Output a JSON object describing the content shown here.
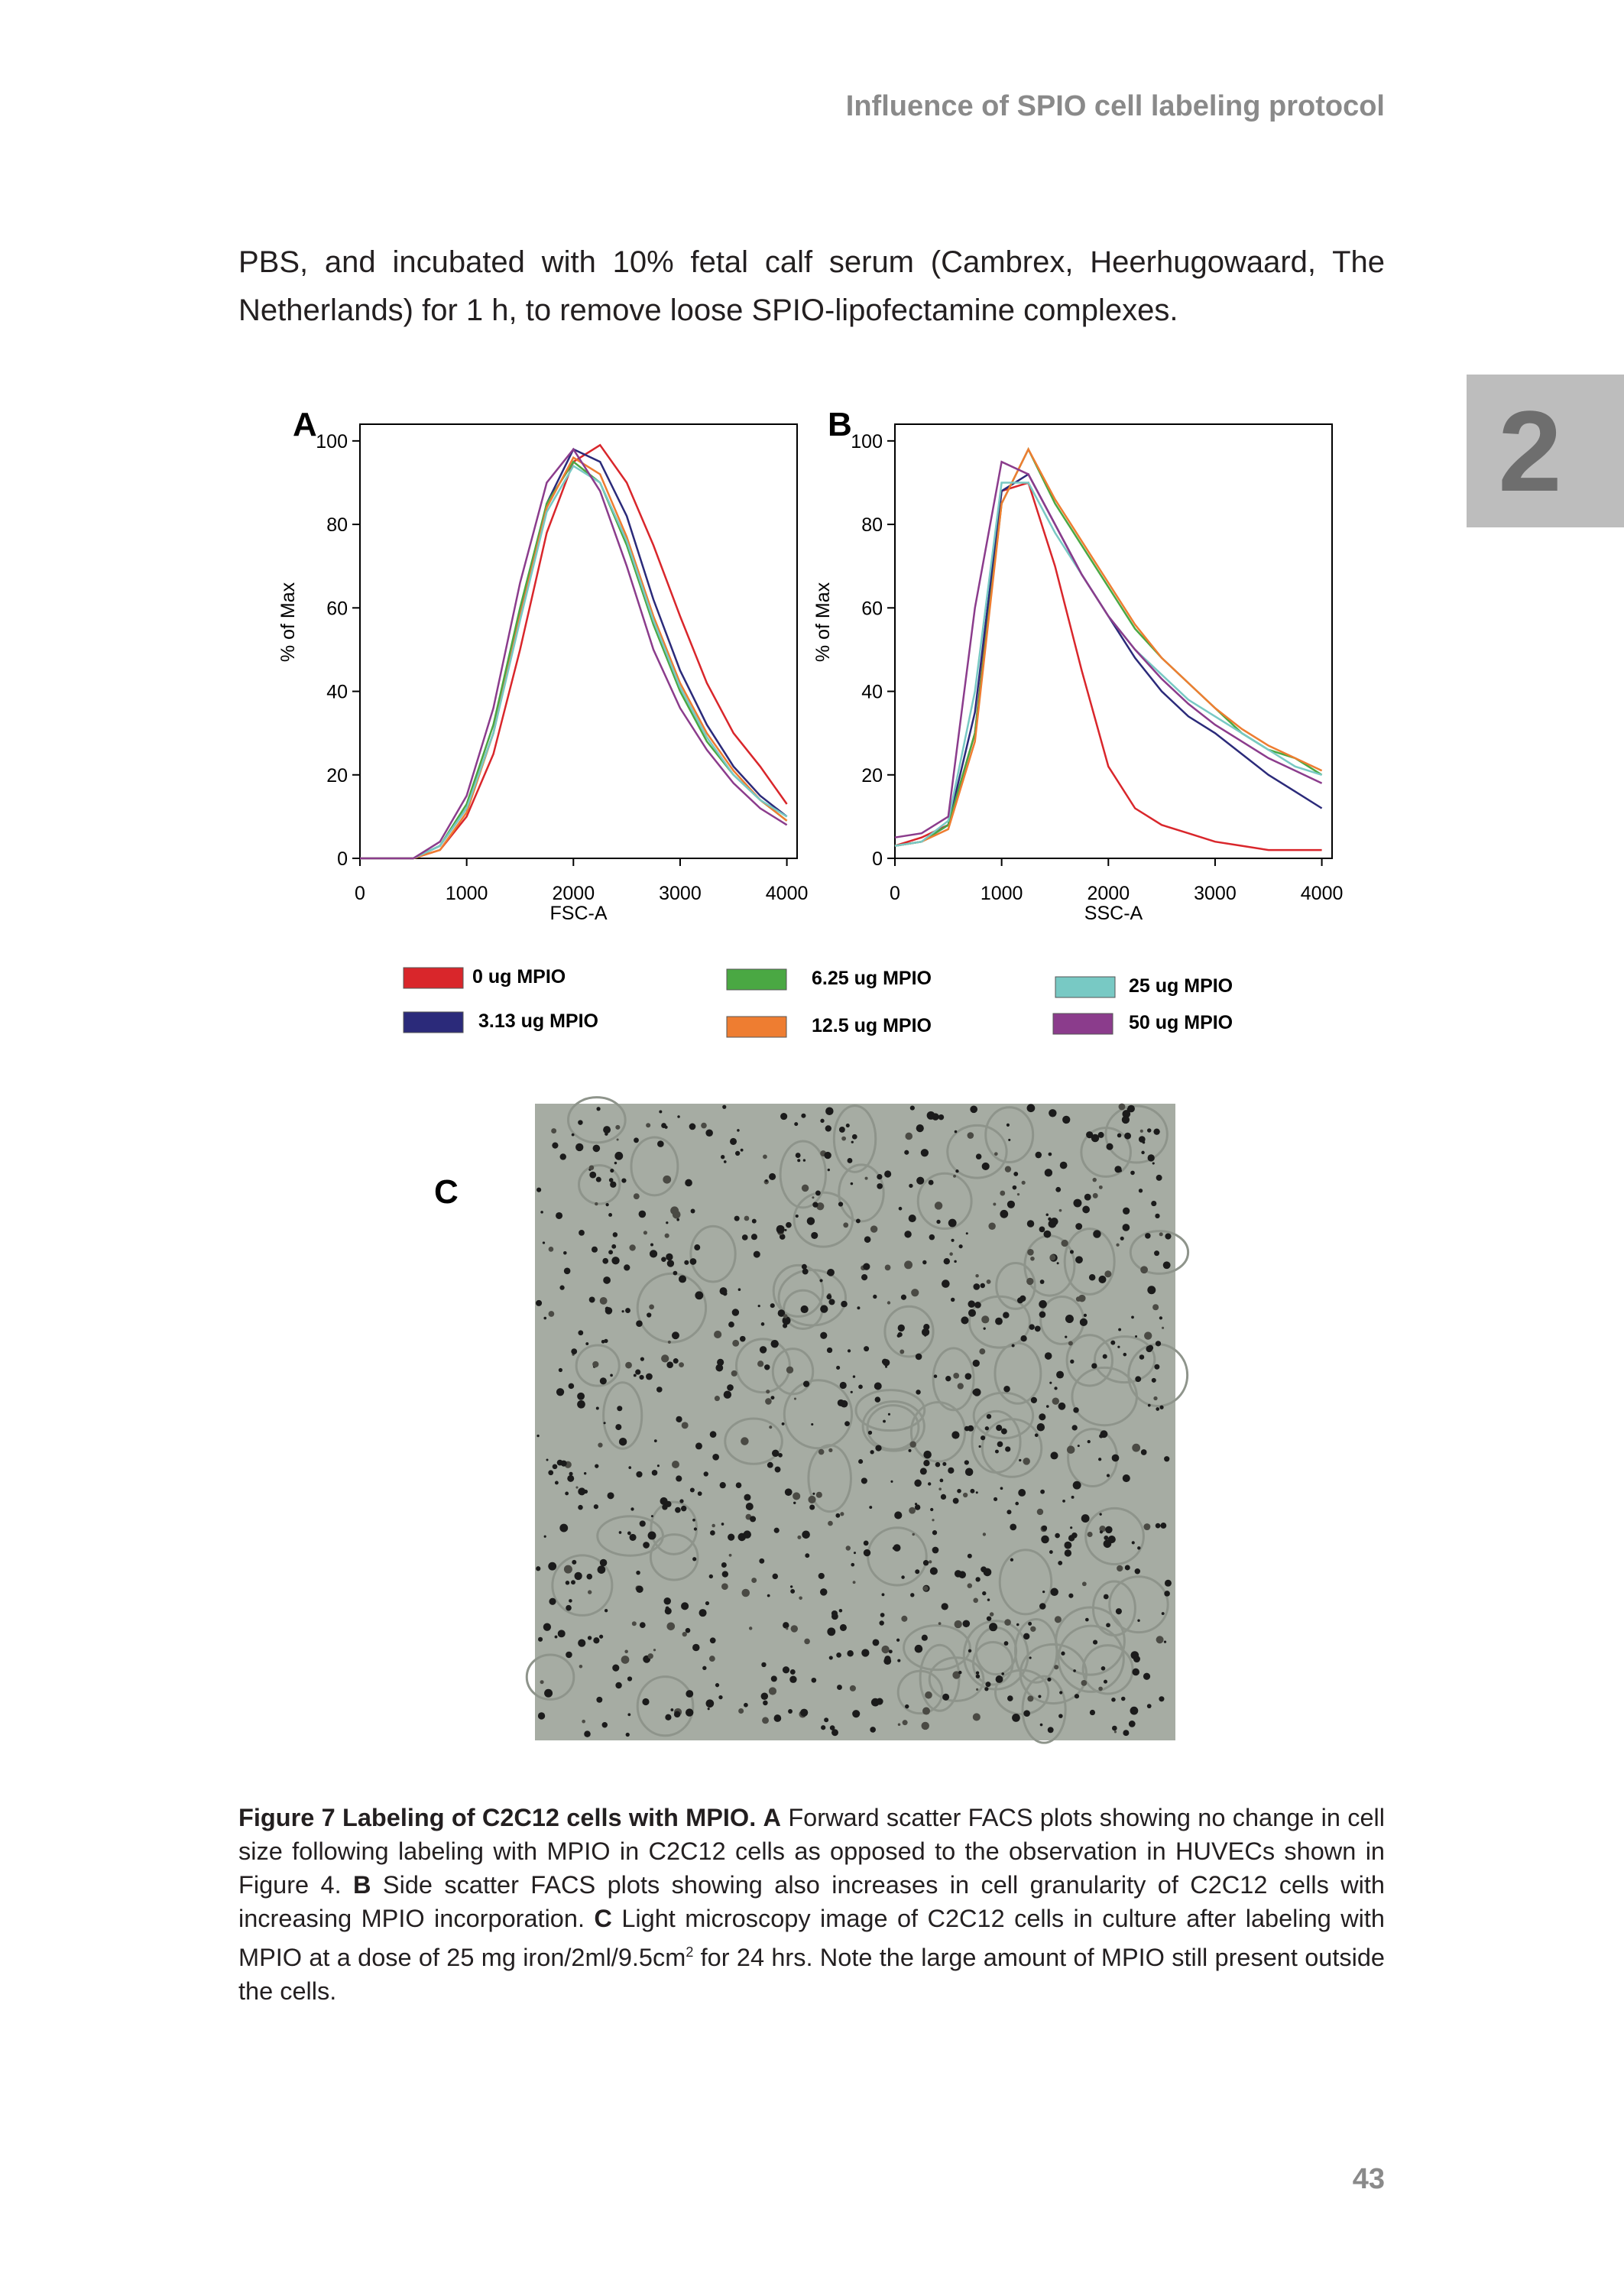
{
  "header": {
    "running_title": "Influence of SPIO cell labeling protocol",
    "chapter": "2",
    "page_number": "43"
  },
  "body": {
    "paragraph": "PBS, and incubated with 10% fetal calf serum (Cambrex, Heerhugowaard, The Netherlands) for 1 h, to remove loose SPIO-lipofectamine complexes."
  },
  "chart_data": [
    {
      "type": "line",
      "label": "A",
      "ylabel": "% of Max",
      "xlabel": "FSC-A",
      "x": [
        0,
        250,
        500,
        750,
        1000,
        1250,
        1500,
        1750,
        2000,
        2250,
        2500,
        2750,
        3000,
        3250,
        3500,
        3750,
        4000
      ],
      "xlim": [
        0,
        4096
      ],
      "ylim": [
        0,
        104
      ],
      "xticks": [
        0,
        1000,
        2000,
        3000,
        4000
      ],
      "yticks": [
        0,
        20,
        40,
        60,
        80,
        100
      ],
      "series": [
        {
          "name": "0 ug MPIO",
          "color": "#d9262b",
          "values": [
            0,
            0,
            0,
            2,
            10,
            25,
            50,
            78,
            95,
            99,
            90,
            75,
            58,
            42,
            30,
            22,
            13
          ]
        },
        {
          "name": "3.13 ug MPIO",
          "color": "#2b2a7a",
          "values": [
            0,
            0,
            0,
            3,
            12,
            30,
            58,
            85,
            98,
            95,
            82,
            62,
            45,
            32,
            22,
            15,
            10
          ]
        },
        {
          "name": "6.25 ug MPIO",
          "color": "#4aa843",
          "values": [
            0,
            0,
            0,
            3,
            13,
            32,
            60,
            85,
            95,
            90,
            75,
            56,
            40,
            28,
            20,
            14,
            9
          ]
        },
        {
          "name": "12.5 ug MPIO",
          "color": "#ee7d31",
          "values": [
            0,
            0,
            0,
            2,
            11,
            30,
            58,
            84,
            96,
            92,
            77,
            58,
            42,
            30,
            21,
            14,
            9
          ]
        },
        {
          "name": "25 ug MPIO",
          "color": "#78c9c4",
          "values": [
            0,
            0,
            0,
            3,
            12,
            30,
            57,
            83,
            94,
            90,
            76,
            57,
            41,
            29,
            20,
            14,
            10
          ]
        },
        {
          "name": "50 ug MPIO",
          "color": "#8b3c8c",
          "values": [
            0,
            0,
            0,
            4,
            15,
            36,
            66,
            90,
            98,
            88,
            70,
            50,
            36,
            26,
            18,
            12,
            8
          ]
        }
      ]
    },
    {
      "type": "line",
      "label": "B",
      "ylabel": "% of Max",
      "xlabel": "SSC-A",
      "x": [
        0,
        250,
        500,
        750,
        1000,
        1250,
        1500,
        1750,
        2000,
        2250,
        2500,
        2750,
        3000,
        3250,
        3500,
        3750,
        4000
      ],
      "xlim": [
        0,
        4096
      ],
      "ylim": [
        0,
        104
      ],
      "xticks": [
        0,
        1000,
        2000,
        3000,
        4000
      ],
      "yticks": [
        0,
        20,
        40,
        60,
        80,
        100
      ],
      "series": [
        {
          "name": "0 ug MPIO",
          "color": "#d9262b",
          "values": [
            3,
            5,
            8,
            30,
            88,
            90,
            70,
            45,
            22,
            12,
            8,
            6,
            4,
            3,
            2,
            2,
            2
          ]
        },
        {
          "name": "3.13 ug MPIO",
          "color": "#2b2a7a",
          "values": [
            3,
            4,
            8,
            35,
            88,
            92,
            80,
            68,
            58,
            48,
            40,
            34,
            30,
            25,
            20,
            16,
            12
          ]
        },
        {
          "name": "6.25 ug MPIO",
          "color": "#4aa843",
          "values": [
            3,
            4,
            8,
            30,
            85,
            98,
            85,
            75,
            65,
            55,
            48,
            42,
            36,
            30,
            26,
            24,
            20
          ]
        },
        {
          "name": "12.5 ug MPIO",
          "color": "#ee7d31",
          "values": [
            3,
            4,
            7,
            28,
            85,
            98,
            86,
            76,
            66,
            56,
            48,
            42,
            36,
            31,
            27,
            24,
            21
          ]
        },
        {
          "name": "25 ug MPIO",
          "color": "#78c9c4",
          "values": [
            3,
            4,
            9,
            40,
            90,
            90,
            78,
            68,
            58,
            50,
            44,
            38,
            34,
            30,
            26,
            22,
            20
          ]
        },
        {
          "name": "50 ug MPIO",
          "color": "#8b3c8c",
          "values": [
            5,
            6,
            10,
            60,
            95,
            92,
            80,
            68,
            58,
            50,
            43,
            37,
            32,
            28,
            24,
            21,
            18
          ]
        }
      ]
    }
  ],
  "image_panel": {
    "label": "C"
  },
  "caption": {
    "title": "Figure 7 Labeling of C2C12 cells with MPIO.",
    "a_label": "A",
    "a_text": "Forward scatter FACS plots showing no change in cell size following labeling with MPIO in C2C12 cells as opposed to the observation in HUVECs shown in Figure 4.",
    "b_label": "B",
    "b_text": "Side scatter FACS plots showing also increases in cell granularity of C2C12 cells with increasing MPIO incorporation.",
    "c_label": "C",
    "c_text_1": "Light microscopy image of C2C12 cells in culture after labeling with MPIO at a dose of 25 mg iron/2ml/9.5cm",
    "c_sup": "2",
    "c_text_2": "for 24 hrs. Note the large amount of MPIO still present outside the cells."
  }
}
